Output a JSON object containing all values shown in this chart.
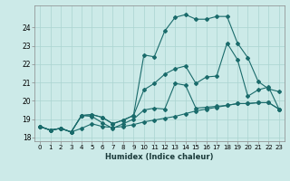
{
  "xlabel": "Humidex (Indice chaleur)",
  "bg_color": "#cceae8",
  "grid_color": "#aad4d0",
  "line_color": "#1a6b6b",
  "xlim": [
    -0.5,
    23.5
  ],
  "ylim": [
    17.8,
    25.2
  ],
  "yticks": [
    18,
    19,
    20,
    21,
    22,
    23,
    24
  ],
  "xticks": [
    0,
    1,
    2,
    3,
    4,
    5,
    6,
    7,
    8,
    9,
    10,
    11,
    12,
    13,
    14,
    15,
    16,
    17,
    18,
    19,
    20,
    21,
    22,
    23
  ],
  "line1_x": [
    0,
    1,
    2,
    3,
    4,
    5,
    6,
    7,
    8,
    9,
    10,
    11,
    12,
    13,
    14,
    15,
    16,
    17,
    18,
    19,
    20,
    21,
    22,
    23
  ],
  "line1_y": [
    18.6,
    18.4,
    18.5,
    18.3,
    18.5,
    18.75,
    18.6,
    18.55,
    18.6,
    18.7,
    18.85,
    18.95,
    19.05,
    19.15,
    19.3,
    19.45,
    19.55,
    19.65,
    19.75,
    19.85,
    19.85,
    19.9,
    19.9,
    19.55
  ],
  "line2_x": [
    0,
    1,
    2,
    3,
    4,
    5,
    6,
    7,
    8,
    9,
    10,
    11,
    12,
    13,
    14,
    15,
    16,
    17,
    18,
    19,
    20,
    21,
    22,
    23
  ],
  "line2_y": [
    18.6,
    18.4,
    18.5,
    18.3,
    19.2,
    19.15,
    18.8,
    18.5,
    18.75,
    19.0,
    19.5,
    19.6,
    19.55,
    20.95,
    20.85,
    19.6,
    19.65,
    19.7,
    19.75,
    19.85,
    19.85,
    19.9,
    19.9,
    19.55
  ],
  "line3_x": [
    0,
    1,
    2,
    3,
    4,
    5,
    6,
    7,
    8,
    9,
    10,
    11,
    12,
    13,
    14,
    15,
    16,
    17,
    18,
    19,
    20,
    21,
    22,
    23
  ],
  "line3_y": [
    18.6,
    18.4,
    18.5,
    18.3,
    19.2,
    19.25,
    19.1,
    18.75,
    18.95,
    19.2,
    20.6,
    20.95,
    21.45,
    21.75,
    21.9,
    20.95,
    21.3,
    21.35,
    23.15,
    22.25,
    20.25,
    20.6,
    20.75,
    19.55
  ],
  "line4_x": [
    0,
    1,
    2,
    3,
    4,
    5,
    6,
    7,
    8,
    9,
    10,
    11,
    12,
    13,
    14,
    15,
    16,
    17,
    18,
    19,
    20,
    21,
    22,
    23
  ],
  "line4_y": [
    18.6,
    18.4,
    18.5,
    18.3,
    19.2,
    19.25,
    19.1,
    18.75,
    18.95,
    19.2,
    22.5,
    22.4,
    23.8,
    24.55,
    24.7,
    24.45,
    24.45,
    24.6,
    24.6,
    23.15,
    22.35,
    21.05,
    20.65,
    20.5
  ]
}
